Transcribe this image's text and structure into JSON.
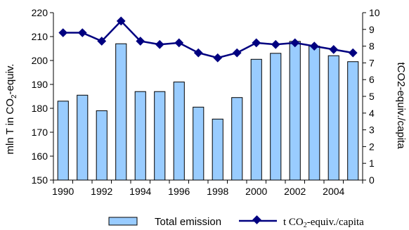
{
  "chart_data": {
    "type": "bar+line",
    "x": [
      1990,
      1991,
      1992,
      1993,
      1994,
      1995,
      1996,
      1997,
      1998,
      1999,
      2000,
      2001,
      2002,
      2003,
      2004,
      2005
    ],
    "x_tick_labels": [
      "1990",
      "1992",
      "1994",
      "1996",
      "1998",
      "2000",
      "2002",
      "2004"
    ],
    "series": [
      {
        "name": "Total emission",
        "kind": "bar",
        "axis": "left",
        "color": "#99ccff",
        "values": [
          183,
          185.5,
          179,
          207,
          187,
          187,
          191,
          180.5,
          175.5,
          184.5,
          200.5,
          203,
          208,
          206,
          202,
          199.5
        ]
      },
      {
        "name": "t CO2-equiv./capita",
        "kind": "line",
        "axis": "right",
        "color": "#000080",
        "values": [
          8.8,
          8.8,
          8.3,
          9.5,
          8.3,
          8.1,
          8.2,
          7.6,
          7.3,
          7.6,
          8.2,
          8.1,
          8.2,
          8.0,
          7.8,
          7.6
        ]
      }
    ],
    "y_left": {
      "label_main": "mln T in CO",
      "label_sub": "2",
      "label_tail": "-equiv.",
      "ylim": [
        150,
        220
      ],
      "ticks": [
        "150",
        "160",
        "170",
        "180",
        "190",
        "200",
        "210",
        "220"
      ]
    },
    "y_right": {
      "label": "tCO2-equiv./capita",
      "ylim": [
        0,
        10
      ],
      "ticks": [
        "0",
        "1",
        "2",
        "3",
        "4",
        "5",
        "6",
        "7",
        "8",
        "9",
        "10"
      ]
    },
    "legend": {
      "position": "bottom",
      "bar_label": "Total emission",
      "line_label_main": "t CO",
      "line_label_sub": "2",
      "line_label_tail": "-equiv./capita"
    },
    "grid": false
  }
}
